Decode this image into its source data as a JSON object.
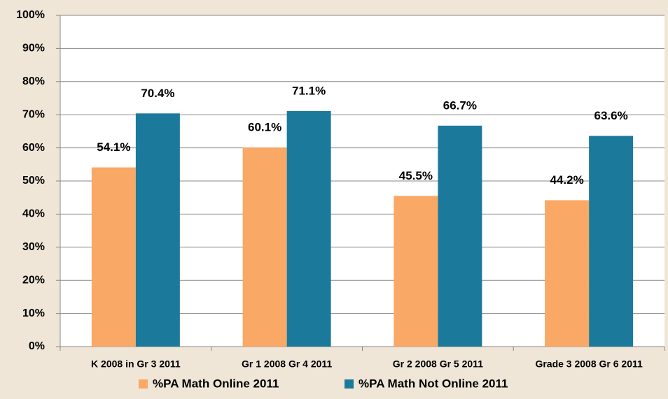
{
  "chart_data": {
    "type": "bar",
    "categories": [
      "K 2008 in Gr 3 2011",
      "Gr 1 2008 Gr 4 2011",
      "Gr 2 2008 Gr 5 2011",
      "Grade 3 2008 Gr 6 2011"
    ],
    "series": [
      {
        "name": "%PA Math Online 2011",
        "color": "#f9a865",
        "values": [
          54.1,
          60.1,
          45.5,
          44.2
        ],
        "value_labels": [
          "54.1%",
          "60.1%",
          "45.5%",
          "44.2%"
        ]
      },
      {
        "name": "%PA Math Not Online 2011",
        "color": "#1b7a9c",
        "values": [
          70.4,
          71.1,
          66.7,
          63.6
        ],
        "value_labels": [
          "70.4%",
          "71.1%",
          "66.7%",
          "63.6%"
        ]
      }
    ],
    "ylim": [
      0,
      100
    ],
    "yticks": [
      {
        "value": 0,
        "label": "0%"
      },
      {
        "value": 10,
        "label": "10%"
      },
      {
        "value": 20,
        "label": "20%"
      },
      {
        "value": 30,
        "label": "30%"
      },
      {
        "value": 40,
        "label": "40%"
      },
      {
        "value": 50,
        "label": "50%"
      },
      {
        "value": 60,
        "label": "60%"
      },
      {
        "value": 70,
        "label": "70%"
      },
      {
        "value": 80,
        "label": "80%"
      },
      {
        "value": 90,
        "label": "90%"
      },
      {
        "value": 100,
        "label": "100%"
      }
    ],
    "grid": true,
    "legend": "bottom"
  }
}
